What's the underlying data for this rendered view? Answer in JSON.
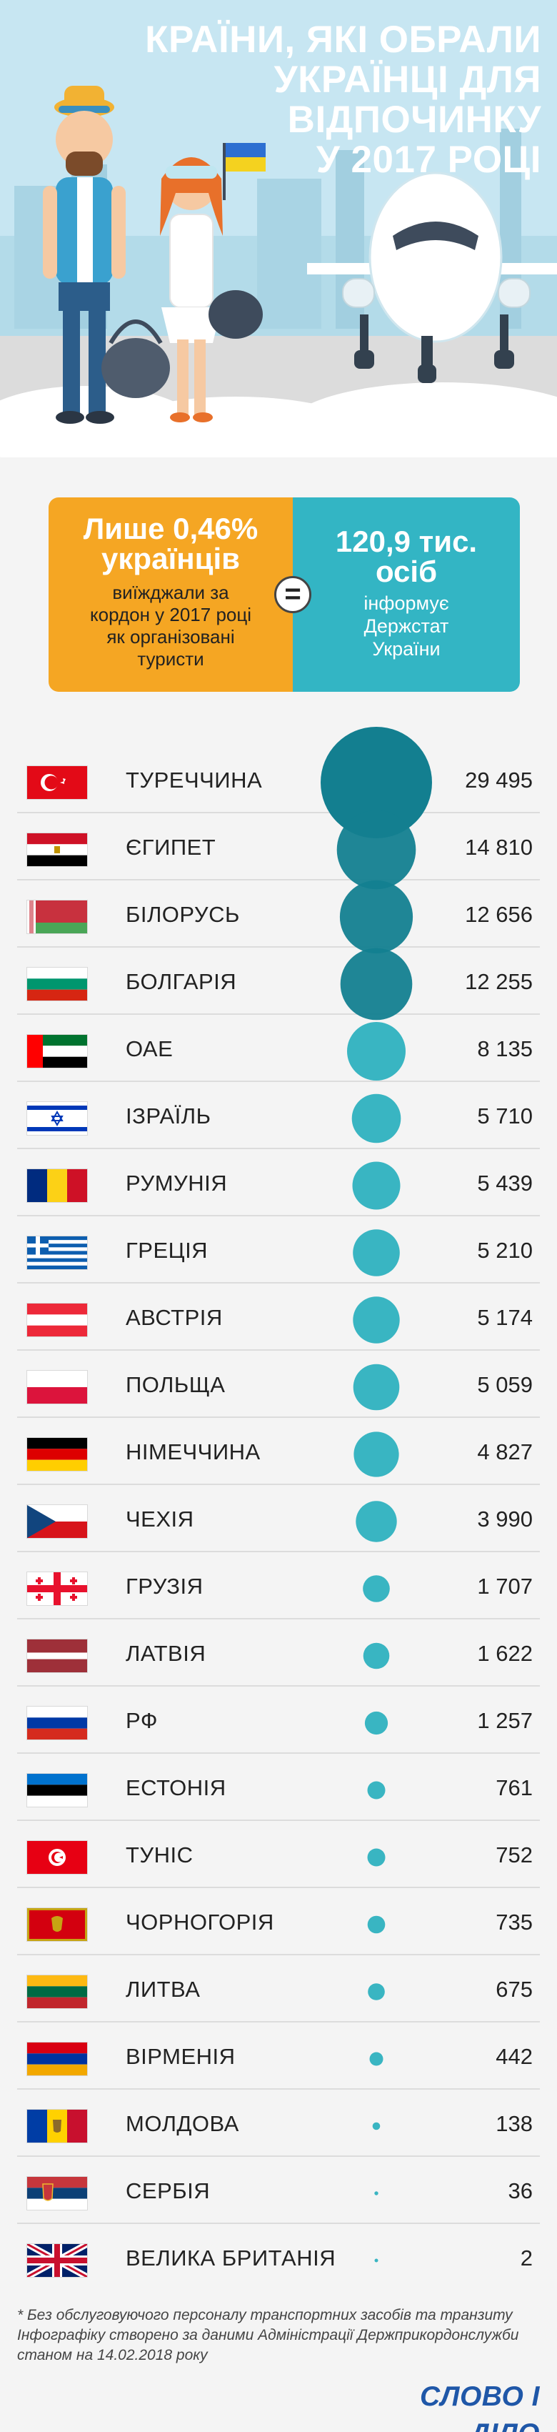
{
  "title_lines": [
    "КРАЇНИ, ЯКІ ОБРАЛИ",
    "УКРАЇНЦІ ДЛЯ ВІДПОЧИНКУ",
    "У 2017 РОЦІ"
  ],
  "info": {
    "left_big_1": "Лише 0,46%",
    "left_big_2": "українців",
    "left_small": [
      "виїжджали за",
      "кордон у 2017 році",
      "як організовані",
      "туристи"
    ],
    "equals": "=",
    "right_big_1": "120,9 тис.",
    "right_big_2": "осіб",
    "right_small": [
      "інформує",
      "Держстат",
      "України"
    ]
  },
  "colors": {
    "bubble_large": "#137f90",
    "bubble_small": "#2eb1bf",
    "accent_orange": "#f5a623",
    "accent_teal": "#33b5c4"
  },
  "chart_data": {
    "type": "bubble",
    "categories": [
      "ТУРЕЧЧИНА",
      "ЄГИПЕТ",
      "БІЛОРУСЬ",
      "БОЛГАРІЯ",
      "ОАЕ",
      "ІЗРАЇЛЬ",
      "РУМУНІЯ",
      "ГРЕЦІЯ",
      "АВСТРІЯ",
      "ПОЛЬЩА",
      "НІМЕЧЧИНА",
      "ЧЕХІЯ",
      "ГРУЗІЯ",
      "ЛАТВІЯ",
      "РФ",
      "ЕСТОНІЯ",
      "ТУНІС",
      "ЧОРНОГОРІЯ",
      "ЛИТВА",
      "ВІРМЕНІЯ",
      "МОЛДОВА",
      "СЕРБІЯ",
      "ВЕЛИКА БРИТАНІЯ"
    ],
    "values": [
      29495,
      14810,
      12656,
      12255,
      8135,
      5710,
      5439,
      5210,
      5174,
      5059,
      4827,
      3990,
      1707,
      1622,
      1257,
      761,
      752,
      735,
      675,
      442,
      138,
      36,
      2
    ],
    "value_labels": [
      "29 495",
      "14 810",
      "12 656",
      "12 255",
      "8 135",
      "5 710",
      "5 439",
      "5 210",
      "5 174",
      "5 059",
      "4 827",
      "3 990",
      "1 707",
      "1 622",
      "1 257",
      "761",
      "752",
      "735",
      "675",
      "442",
      "138",
      "36",
      "2"
    ],
    "flags": [
      "turkey-flag",
      "egypt-flag",
      "belarus-flag",
      "bulgaria-flag",
      "uae-flag",
      "israel-flag",
      "romania-flag",
      "greece-flag",
      "austria-flag",
      "poland-flag",
      "germany-flag",
      "czechia-flag",
      "georgia-flag",
      "latvia-flag",
      "russia-flag",
      "estonia-flag",
      "tunisia-flag",
      "montenegro-flag",
      "lithuania-flag",
      "armenia-flag",
      "moldova-flag",
      "serbia-flag",
      "uk-flag"
    ]
  },
  "footnotes": [
    "* Без обслуговуючого персоналу транспортних засобів та транзиту",
    "Інфографіку створено за даними Адміністрації Держприкордонслужби",
    "станом на 14.02.2018 року"
  ],
  "logo": "СЛОВО І ДІЛО"
}
